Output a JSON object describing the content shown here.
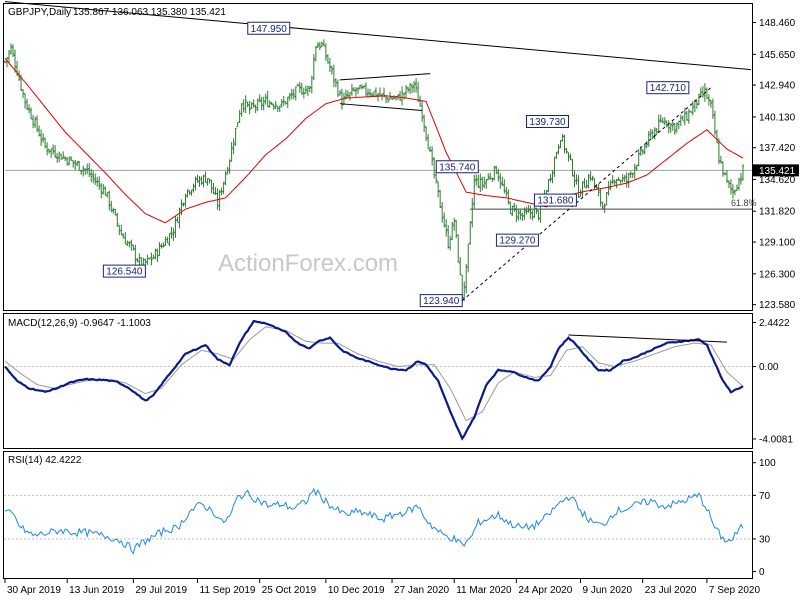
{
  "header": {
    "symbol": "GBPJPY,Daily",
    "ohlc": "135.867 136.063 135.380 135.421"
  },
  "watermark": "ActionForex.com",
  "colors": {
    "price": "#2e7d32",
    "ma": "#e00000",
    "macd": "#0b1a8c",
    "signal": "#9a9a9a",
    "rsi": "#1e88e5",
    "trend": "#000000",
    "level": "#808080",
    "grid": "#c0c0c0",
    "label_border": "#1a237e"
  },
  "chart_data": [
    {
      "type": "line",
      "name": "price-panel",
      "title": "GBPJPY,Daily",
      "subtitle": "135.867 136.063 135.380 135.421",
      "ylim": [
        123.2,
        150.0
      ],
      "y_ticks": [
        {
          "value": 148.46,
          "label": "148.460"
        },
        {
          "value": 145.65,
          "label": "145.650"
        },
        {
          "value": 142.94,
          "label": "142.940"
        },
        {
          "value": 140.13,
          "label": "140.130"
        },
        {
          "value": 137.42,
          "label": "137.420"
        },
        {
          "value": 134.62,
          "label": "134.620"
        },
        {
          "value": 131.82,
          "label": "131.820"
        },
        {
          "value": 129.1,
          "label": "129.100"
        },
        {
          "value": 126.3,
          "label": "126.300"
        },
        {
          "value": 123.58,
          "label": "123.580"
        }
      ],
      "x_ticks": [
        {
          "i": 0,
          "label": "30 Apr 2019"
        },
        {
          "i": 31,
          "label": "13 Jun 2019"
        },
        {
          "i": 64,
          "label": "29 Jul 2019"
        },
        {
          "i": 96,
          "label": "11 Sep 2019"
        },
        {
          "i": 127,
          "label": "25 Oct 2019"
        },
        {
          "i": 160,
          "label": "10 Dec 2019"
        },
        {
          "i": 193,
          "label": "27 Jan 2020"
        },
        {
          "i": 224,
          "label": "11 Mar 2020"
        },
        {
          "i": 255,
          "label": "24 Apr 2020"
        },
        {
          "i": 287,
          "label": "9 Jun 2020"
        },
        {
          "i": 318,
          "label": "23 Jul 2020"
        },
        {
          "i": 350,
          "label": "7 Sep 2020"
        }
      ],
      "anchors": [
        [
          0,
          145.0
        ],
        [
          3,
          146.2
        ],
        [
          10,
          141.5
        ],
        [
          20,
          137.5
        ],
        [
          30,
          136.5
        ],
        [
          40,
          135.5
        ],
        [
          50,
          133.5
        ],
        [
          58,
          129.8
        ],
        [
          63,
          128.5
        ],
        [
          68,
          127.0
        ],
        [
          74,
          127.8
        ],
        [
          84,
          130.2
        ],
        [
          90,
          133.5
        ],
        [
          96,
          134.5
        ],
        [
          101,
          134.8
        ],
        [
          106,
          132.5
        ],
        [
          112,
          136.5
        ],
        [
          118,
          141.5
        ],
        [
          122,
          140.8
        ],
        [
          130,
          141.5
        ],
        [
          138,
          141.2
        ],
        [
          146,
          142.5
        ],
        [
          152,
          142.6
        ],
        [
          155,
          146.5
        ],
        [
          158,
          146.5
        ],
        [
          162,
          144.5
        ],
        [
          168,
          141.5
        ],
        [
          175,
          142.5
        ],
        [
          182,
          142.4
        ],
        [
          190,
          141.8
        ],
        [
          196,
          141.8
        ],
        [
          204,
          143.0
        ],
        [
          208,
          140.5
        ],
        [
          214,
          135.0
        ],
        [
          218,
          131.5
        ],
        [
          221,
          129.0
        ],
        [
          224,
          131.0
        ],
        [
          228,
          124.3
        ],
        [
          230,
          126.5
        ],
        [
          234,
          134.5
        ],
        [
          238,
          134.2
        ],
        [
          245,
          135.5
        ],
        [
          252,
          132.0
        ],
        [
          258,
          131.4
        ],
        [
          264,
          131.8
        ],
        [
          266,
          131.5
        ],
        [
          272,
          135.0
        ],
        [
          277,
          138.5
        ],
        [
          282,
          136.0
        ],
        [
          286,
          133.5
        ],
        [
          292,
          135.0
        ],
        [
          298,
          132.3
        ],
        [
          304,
          134.8
        ],
        [
          310,
          134.5
        ],
        [
          316,
          136.5
        ],
        [
          322,
          138.5
        ],
        [
          328,
          139.8
        ],
        [
          334,
          139.3
        ],
        [
          340,
          140.2
        ],
        [
          345,
          141.5
        ],
        [
          349,
          142.3
        ],
        [
          352,
          141.0
        ],
        [
          356,
          136.5
        ],
        [
          360,
          134.3
        ],
        [
          363,
          133.5
        ],
        [
          368,
          135.4
        ]
      ],
      "ma_anchors": [
        [
          0,
          145.3
        ],
        [
          10,
          143.2
        ],
        [
          20,
          141.0
        ],
        [
          30,
          138.8
        ],
        [
          40,
          137.0
        ],
        [
          50,
          135.2
        ],
        [
          60,
          133.3
        ],
        [
          70,
          131.6
        ],
        [
          80,
          130.8
        ],
        [
          90,
          132.0
        ],
        [
          100,
          132.6
        ],
        [
          110,
          133.0
        ],
        [
          120,
          134.8
        ],
        [
          130,
          136.8
        ],
        [
          140,
          138.2
        ],
        [
          150,
          140.0
        ],
        [
          160,
          141.3
        ],
        [
          170,
          141.8
        ],
        [
          180,
          141.9
        ],
        [
          190,
          142.0
        ],
        [
          200,
          141.8
        ],
        [
          210,
          141.5
        ],
        [
          220,
          137.0
        ],
        [
          230,
          133.5
        ],
        [
          240,
          133.2
        ],
        [
          250,
          133.0
        ],
        [
          260,
          132.6
        ],
        [
          270,
          132.2
        ],
        [
          280,
          133.2
        ],
        [
          290,
          133.6
        ],
        [
          300,
          133.9
        ],
        [
          310,
          134.3
        ],
        [
          320,
          135.0
        ],
        [
          330,
          136.4
        ],
        [
          340,
          137.8
        ],
        [
          350,
          139.0
        ],
        [
          360,
          137.3
        ],
        [
          368,
          136.5
        ]
      ],
      "ma_name": "",
      "trendlines": [
        {
          "x1": 0,
          "y1": 150.3,
          "x2": 372,
          "y2": 144.3
        },
        {
          "x1": 228,
          "y1": 123.94,
          "x2": 352,
          "y2": 142.71,
          "dashed": true
        },
        {
          "x1": 167,
          "y1": 143.4,
          "x2": 212,
          "y2": 143.95
        },
        {
          "x1": 167,
          "y1": 141.3,
          "x2": 208,
          "y2": 140.7
        }
      ],
      "levels": [
        {
          "y": 135.421,
          "x_from": 0
        },
        {
          "y": 132.0,
          "x_from": 232
        }
      ],
      "level_labels": [
        {
          "text": "61.8%",
          "y": 132.0,
          "x": 362
        }
      ],
      "annotations": [
        {
          "text": "147.950",
          "x": 142,
          "y": 147.95,
          "side": "left"
        },
        {
          "text": "126.540",
          "x": 70,
          "y": 126.54,
          "side": "left"
        },
        {
          "text": "123.940",
          "x": 228,
          "y": 123.94,
          "side": "left"
        },
        {
          "text": "135.740",
          "x": 236,
          "y": 135.74,
          "side": "left"
        },
        {
          "text": "139.730",
          "x": 281,
          "y": 139.73,
          "side": "left"
        },
        {
          "text": "131.680",
          "x": 264,
          "y": 132.8,
          "side": "right"
        },
        {
          "text": "129.270",
          "x": 266,
          "y": 129.27,
          "side": "left"
        },
        {
          "text": "142.710",
          "x": 341,
          "y": 142.71,
          "side": "left"
        }
      ],
      "current_price": "135.421"
    },
    {
      "type": "line",
      "name": "macd-panel",
      "title": "MACD(12,26,9) -0.9647 -1.1003",
      "ylim": [
        -4.4,
        2.8
      ],
      "y_ticks": [
        {
          "value": 2.4422,
          "label": "2.4422"
        },
        {
          "value": 0.0,
          "label": "0.00"
        },
        {
          "value": -4.0081,
          "label": "-4.0081"
        }
      ],
      "macd_anchors": [
        [
          0,
          0.0
        ],
        [
          6,
          -0.8
        ],
        [
          12,
          -1.2
        ],
        [
          20,
          -1.4
        ],
        [
          26,
          -1.2
        ],
        [
          32,
          -0.9
        ],
        [
          40,
          -0.7
        ],
        [
          50,
          -0.75
        ],
        [
          56,
          -0.85
        ],
        [
          62,
          -1.2
        ],
        [
          70,
          -1.9
        ],
        [
          74,
          -1.6
        ],
        [
          80,
          -0.7
        ],
        [
          90,
          0.7
        ],
        [
          100,
          1.2
        ],
        [
          106,
          0.4
        ],
        [
          112,
          0.1
        ],
        [
          118,
          1.5
        ],
        [
          124,
          2.5
        ],
        [
          130,
          2.4
        ],
        [
          140,
          1.9
        ],
        [
          146,
          1.3
        ],
        [
          152,
          1.0
        ],
        [
          156,
          1.4
        ],
        [
          162,
          1.6
        ],
        [
          168,
          0.9
        ],
        [
          175,
          0.5
        ],
        [
          182,
          0.25
        ],
        [
          192,
          -0.1
        ],
        [
          200,
          -0.2
        ],
        [
          206,
          0.3
        ],
        [
          210,
          0.1
        ],
        [
          216,
          -0.8
        ],
        [
          222,
          -2.5
        ],
        [
          228,
          -4.0
        ],
        [
          234,
          -2.8
        ],
        [
          240,
          -1.0
        ],
        [
          246,
          -0.2
        ],
        [
          252,
          -0.25
        ],
        [
          260,
          -0.6
        ],
        [
          266,
          -0.8
        ],
        [
          272,
          0.0
        ],
        [
          276,
          1.0
        ],
        [
          281,
          1.6
        ],
        [
          285,
          1.2
        ],
        [
          290,
          0.5
        ],
        [
          296,
          -0.2
        ],
        [
          302,
          -0.2
        ],
        [
          308,
          0.3
        ],
        [
          314,
          0.5
        ],
        [
          322,
          0.9
        ],
        [
          330,
          1.3
        ],
        [
          338,
          1.4
        ],
        [
          346,
          1.5
        ],
        [
          350,
          1.2
        ],
        [
          354,
          0.2
        ],
        [
          358,
          -0.8
        ],
        [
          362,
          -1.4
        ],
        [
          368,
          -1.1
        ]
      ],
      "signal_anchors": [
        [
          0,
          0.3
        ],
        [
          8,
          -0.4
        ],
        [
          16,
          -1.0
        ],
        [
          24,
          -1.2
        ],
        [
          32,
          -1.0
        ],
        [
          40,
          -0.8
        ],
        [
          50,
          -0.7
        ],
        [
          60,
          -0.9
        ],
        [
          70,
          -1.5
        ],
        [
          78,
          -1.2
        ],
        [
          88,
          0.1
        ],
        [
          98,
          0.9
        ],
        [
          106,
          0.7
        ],
        [
          114,
          0.4
        ],
        [
          122,
          1.5
        ],
        [
          130,
          2.2
        ],
        [
          140,
          2.0
        ],
        [
          150,
          1.4
        ],
        [
          158,
          1.3
        ],
        [
          166,
          1.3
        ],
        [
          176,
          0.7
        ],
        [
          186,
          0.3
        ],
        [
          196,
          0.0
        ],
        [
          206,
          0.1
        ],
        [
          214,
          0.1
        ],
        [
          222,
          -1.2
        ],
        [
          230,
          -3.0
        ],
        [
          238,
          -2.5
        ],
        [
          246,
          -0.9
        ],
        [
          254,
          -0.3
        ],
        [
          264,
          -0.6
        ],
        [
          272,
          -0.5
        ],
        [
          280,
          0.9
        ],
        [
          288,
          1.1
        ],
        [
          296,
          0.2
        ],
        [
          304,
          0.0
        ],
        [
          314,
          0.3
        ],
        [
          324,
          0.7
        ],
        [
          334,
          1.1
        ],
        [
          344,
          1.3
        ],
        [
          352,
          1.2
        ],
        [
          360,
          -0.3
        ],
        [
          368,
          -1.1
        ]
      ],
      "trendlines": [
        {
          "x1": 281,
          "y1": 1.75,
          "x2": 360,
          "y2": 1.35
        }
      ],
      "macd_name": "",
      "signal_name": ""
    },
    {
      "type": "line",
      "name": "rsi-panel",
      "title": "RSI(14) 42.4222",
      "ylim": [
        -5,
        108
      ],
      "y_ticks": [
        {
          "value": 100,
          "label": "100"
        },
        {
          "value": 70,
          "label": "70"
        },
        {
          "value": 30,
          "label": "30"
        },
        {
          "value": 0,
          "label": "0"
        }
      ],
      "guides": [
        70,
        30
      ],
      "rsi_anchors": [
        [
          0,
          55
        ],
        [
          4,
          52
        ],
        [
          8,
          40
        ],
        [
          14,
          33
        ],
        [
          20,
          35
        ],
        [
          28,
          38
        ],
        [
          34,
          36
        ],
        [
          40,
          36
        ],
        [
          46,
          34
        ],
        [
          52,
          32
        ],
        [
          58,
          28
        ],
        [
          64,
          20
        ],
        [
          68,
          26
        ],
        [
          74,
          32
        ],
        [
          80,
          38
        ],
        [
          86,
          40
        ],
        [
          92,
          55
        ],
        [
          98,
          62
        ],
        [
          104,
          55
        ],
        [
          108,
          45
        ],
        [
          112,
          50
        ],
        [
          116,
          68
        ],
        [
          120,
          72
        ],
        [
          126,
          66
        ],
        [
          132,
          60
        ],
        [
          138,
          62
        ],
        [
          144,
          58
        ],
        [
          150,
          64
        ],
        [
          154,
          75
        ],
        [
          158,
          68
        ],
        [
          164,
          58
        ],
        [
          170,
          52
        ],
        [
          176,
          55
        ],
        [
          182,
          52
        ],
        [
          188,
          48
        ],
        [
          194,
          52
        ],
        [
          200,
          55
        ],
        [
          206,
          60
        ],
        [
          210,
          48
        ],
        [
          214,
          40
        ],
        [
          218,
          34
        ],
        [
          224,
          30
        ],
        [
          228,
          24
        ],
        [
          232,
          30
        ],
        [
          236,
          45
        ],
        [
          240,
          48
        ],
        [
          246,
          52
        ],
        [
          252,
          44
        ],
        [
          258,
          40
        ],
        [
          264,
          42
        ],
        [
          270,
          50
        ],
        [
          276,
          62
        ],
        [
          282,
          70
        ],
        [
          286,
          58
        ],
        [
          292,
          46
        ],
        [
          298,
          42
        ],
        [
          304,
          55
        ],
        [
          310,
          58
        ],
        [
          316,
          62
        ],
        [
          322,
          65
        ],
        [
          328,
          60
        ],
        [
          334,
          62
        ],
        [
          340,
          66
        ],
        [
          346,
          70
        ],
        [
          350,
          58
        ],
        [
          354,
          40
        ],
        [
          358,
          30
        ],
        [
          362,
          28
        ],
        [
          366,
          38
        ],
        [
          368,
          42
        ]
      ],
      "rsi_name": ""
    }
  ]
}
